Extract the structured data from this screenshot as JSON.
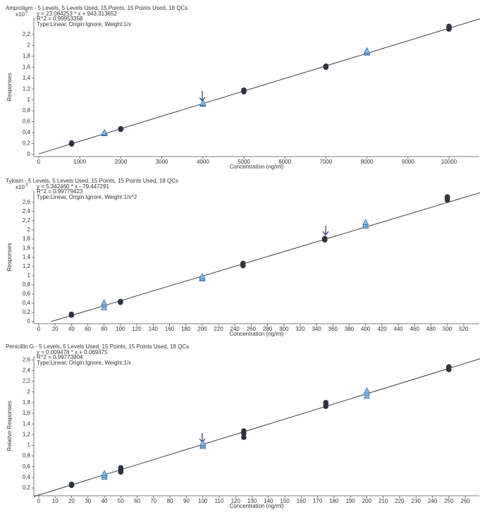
{
  "chart_data": [
    {
      "type": "scatter",
      "title": "Amprolium - 5 Levels, 5 Levels Used, 15 Points, 15 Points Used, 18 QCs",
      "equation": "y = 23.084253 * x + 943.313652",
      "r_squared": "R^2 = 0.99953358",
      "fit_type": "Type:Linear, Origin:Ignore, Weight:1/x",
      "y_multiplier": {
        "base": "x10",
        "exponent": "5"
      },
      "ylabel": "Responses",
      "xlabel": "Concentration (ng/ml)",
      "xlim": [
        -120,
        10756
      ],
      "ylim": [
        -0.04,
        2.51
      ],
      "xticks": [
        0,
        1000,
        2000,
        3000,
        4000,
        5000,
        6000,
        7000,
        8000,
        9000,
        10000
      ],
      "yticks": [
        0,
        {
          "value": 0.2,
          "label": "0,2"
        },
        {
          "value": 0.4,
          "label": "0,4"
        },
        {
          "value": 0.6,
          "label": "0,6"
        },
        {
          "value": 0.8,
          "label": "0,8"
        },
        1,
        {
          "value": 1.2,
          "label": "1,2"
        },
        {
          "value": 1.4,
          "label": "1,4"
        },
        {
          "value": 1.6,
          "label": "1,6"
        },
        {
          "value": 1.8,
          "label": "1,8"
        },
        2,
        {
          "value": 2.2,
          "label": "2,2"
        }
      ],
      "trendline": {
        "x": [
          0,
          10756
        ],
        "values": [
          0.0094,
          2.49
        ],
        "color": "#3a3f48"
      },
      "series": [
        {
          "marker": "circle",
          "color": "#2f3540",
          "x": [
            800,
            800,
            800,
            2000,
            2000,
            2000,
            5000,
            5000,
            5000,
            7000,
            7000,
            7000,
            10000,
            10000,
            10000
          ],
          "values": [
            0.19,
            0.2,
            0.21,
            0.46,
            0.47,
            0.47,
            1.15,
            1.17,
            1.18,
            1.6,
            1.61,
            1.62,
            2.3,
            2.33,
            2.35
          ]
        },
        {
          "marker": "triangle",
          "color": "#86bde6",
          "x": [
            1600,
            1600,
            1600,
            4000,
            4000,
            4000,
            8000,
            8000,
            8000
          ],
          "values": [
            0.38,
            0.39,
            0.4,
            0.92,
            0.93,
            0.94,
            1.86,
            1.88,
            1.9
          ]
        }
      ]
    },
    {
      "type": "scatter",
      "title": "Tylosin - 5 Levels, 5 Levels Used, 15 Points, 15 Points Used, 18 QCs",
      "equation": "y = 5.342460 * x - 79.447291",
      "r_squared": "R^2 = 0.99779423",
      "fit_type": "Type:Linear, Origin:Ignore, Weight:1/x^2",
      "y_multiplier": {
        "base": "x10",
        "exponent": "3"
      },
      "ylabel": "Responses",
      "xlabel": "Concentration (ng/ml)",
      "xlim": [
        -6,
        540
      ],
      "ylim": [
        -0.046,
        2.86
      ],
      "xticks": [
        0,
        20,
        40,
        60,
        80,
        100,
        120,
        140,
        160,
        180,
        200,
        220,
        240,
        260,
        280,
        300,
        320,
        340,
        360,
        380,
        400,
        420,
        440,
        460,
        480,
        500,
        520
      ],
      "yticks": [
        0,
        {
          "value": 0.2,
          "label": "0,2"
        },
        {
          "value": 0.4,
          "label": "0,4"
        },
        {
          "value": 0.6,
          "label": "0,6"
        },
        {
          "value": 0.8,
          "label": "0,8"
        },
        1,
        {
          "value": 1.2,
          "label": "1,2"
        },
        {
          "value": 1.4,
          "label": "1,4"
        },
        {
          "value": 1.6,
          "label": "1,6"
        },
        {
          "value": 1.8,
          "label": "1,8"
        },
        2,
        {
          "value": 2.2,
          "label": "2,2"
        },
        {
          "value": 2.4,
          "label": "2,4"
        },
        {
          "value": 2.6,
          "label": "2,6"
        }
      ],
      "trendline": {
        "x": [
          15,
          540
        ],
        "values": [
          0.0,
          2.81
        ],
        "color": "#3a3f48"
      },
      "series": [
        {
          "marker": "circle",
          "color": "#2f3540",
          "x": [
            40,
            40,
            40,
            100,
            100,
            100,
            250,
            250,
            250,
            350,
            350,
            350,
            500,
            500,
            500
          ],
          "values": [
            0.14,
            0.15,
            0.16,
            0.42,
            0.43,
            0.44,
            1.22,
            1.25,
            1.27,
            1.78,
            1.8,
            1.81,
            2.65,
            2.7,
            2.72
          ]
        },
        {
          "marker": "triangle",
          "color": "#86bde6",
          "x": [
            80,
            80,
            80,
            200,
            200,
            200,
            400,
            400,
            400
          ],
          "values": [
            0.3,
            0.37,
            0.41,
            0.93,
            0.95,
            0.98,
            2.08,
            2.12,
            2.16
          ]
        }
      ]
    },
    {
      "type": "scatter",
      "title": "Penicillin G - 5 Levels, 5 Levels Used, 15 Points, 15 Points Used, 18 QCs",
      "equation": "y = 0.009478 * x + 0.069375",
      "r_squared": "R^2 = 0.99773904",
      "fit_type": "Type:Linear, Origin:Ignore, Weight:1/x",
      "ylabel": "Relative Responses",
      "xlabel": "Concentration (ng/ml)",
      "xlim": [
        -3,
        269
      ],
      "ylim": [
        0.055,
        2.67
      ],
      "xticks": [
        0,
        10,
        20,
        30,
        40,
        50,
        60,
        70,
        80,
        90,
        100,
        110,
        120,
        130,
        140,
        150,
        160,
        170,
        180,
        190,
        200,
        210,
        220,
        230,
        240,
        250,
        260
      ],
      "yticks": [
        {
          "value": 0.2,
          "label": "0,2"
        },
        {
          "value": 0.4,
          "label": "0,4"
        },
        {
          "value": 0.6,
          "label": "0,6"
        },
        {
          "value": 0.8,
          "label": "0,8"
        },
        1,
        {
          "value": 1.2,
          "label": "1,2"
        },
        {
          "value": 1.4,
          "label": "1,4"
        },
        {
          "value": 1.6,
          "label": "1,6"
        },
        {
          "value": 1.8,
          "label": "1,8"
        },
        2,
        {
          "value": 2.2,
          "label": "2,2"
        },
        {
          "value": 2.4,
          "label": "2,4"
        },
        {
          "value": 2.6,
          "label": "2,6"
        }
      ],
      "trendline": {
        "x": [
          -3,
          269
        ],
        "values": [
          0.04,
          2.62
        ],
        "color": "#3a3f48"
      },
      "series": [
        {
          "marker": "circle",
          "color": "#2f3540",
          "x": [
            20,
            20,
            20,
            50,
            50,
            50,
            125,
            125,
            125,
            175,
            175,
            175,
            250,
            250,
            250
          ],
          "values": [
            0.25,
            0.26,
            0.27,
            0.5,
            0.54,
            0.58,
            1.15,
            1.22,
            1.27,
            1.73,
            1.77,
            1.8,
            2.42,
            2.45,
            2.47
          ]
        },
        {
          "marker": "triangle",
          "color": "#86bde6",
          "x": [
            40,
            40,
            40,
            100,
            100,
            100,
            200,
            200,
            200
          ],
          "values": [
            0.4,
            0.44,
            0.47,
            0.98,
            1.01,
            1.04,
            1.92,
            1.98,
            2.02
          ]
        }
      ]
    }
  ]
}
